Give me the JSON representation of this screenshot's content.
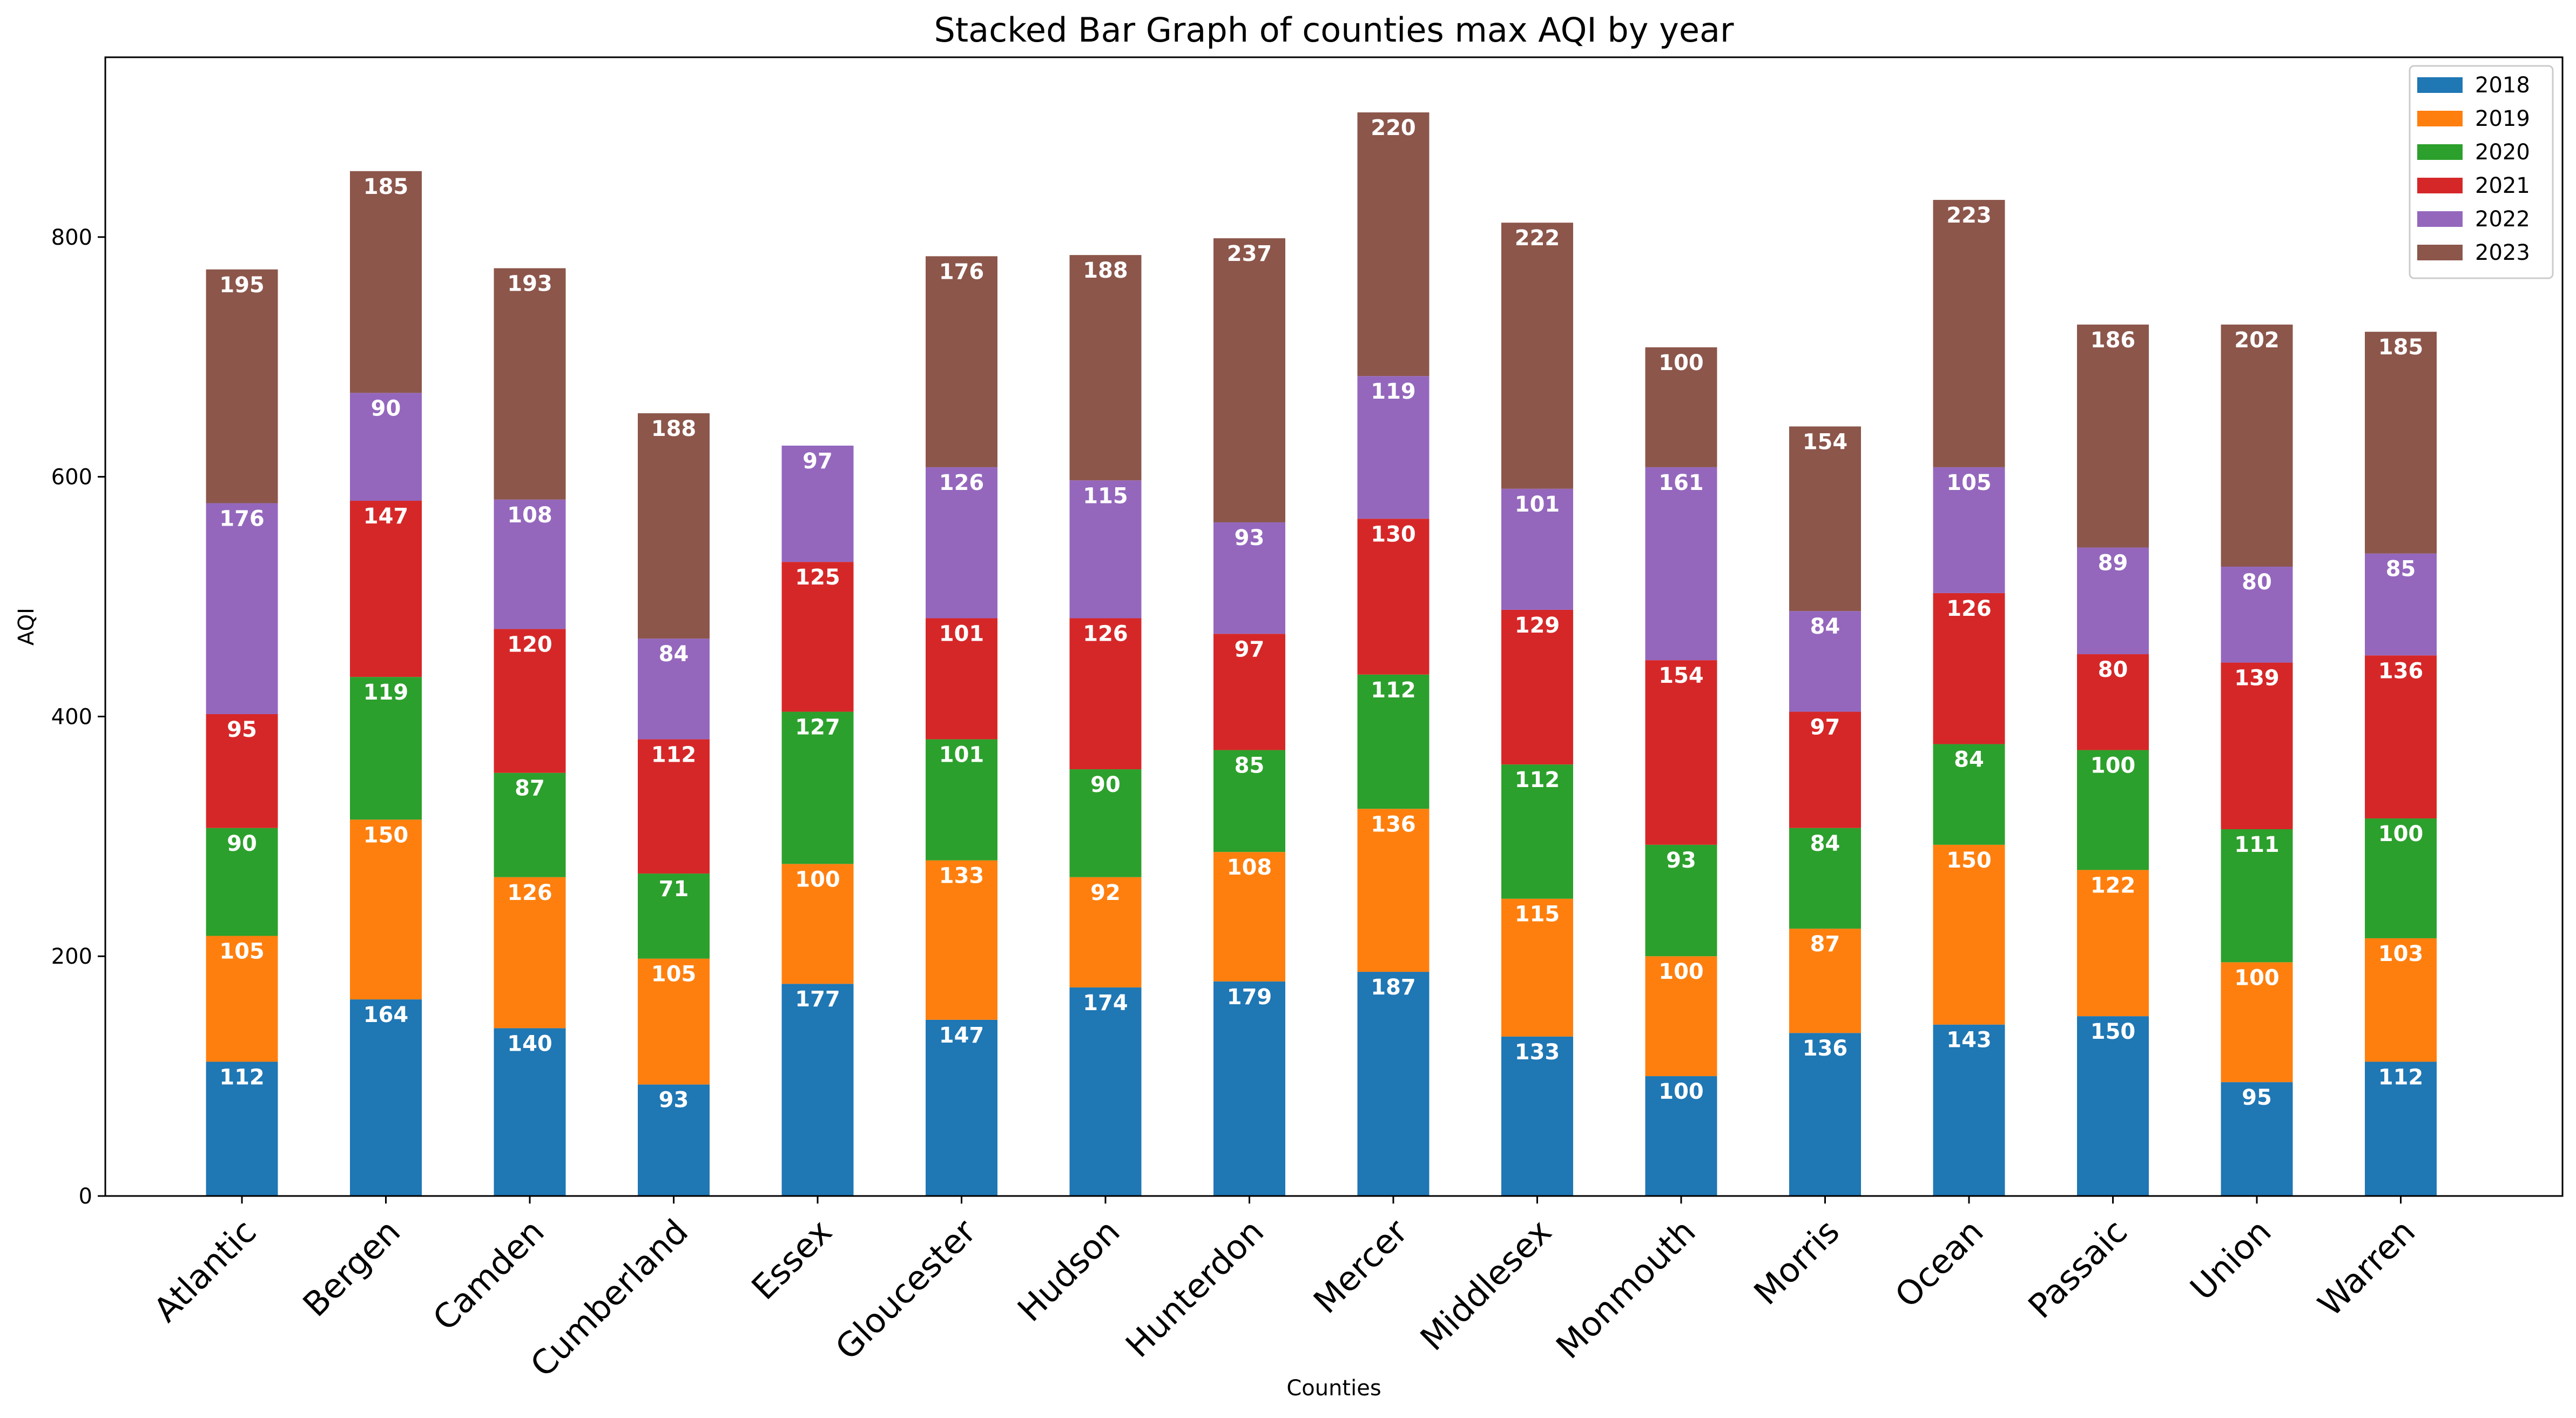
{
  "chart_data": {
    "type": "bar",
    "stacked": true,
    "title": "Stacked Bar Graph of counties max AQI by year",
    "xlabel": "Counties",
    "ylabel": "AQI",
    "ylim": [
      0,
      950
    ],
    "yticks": [
      0,
      200,
      400,
      600,
      800
    ],
    "grid": false,
    "legend_position": "top-right",
    "categories": [
      "Atlantic",
      "Bergen",
      "Camden",
      "Cumberland",
      "Essex",
      "Gloucester",
      "Hudson",
      "Hunterdon",
      "Mercer",
      "Middlesex",
      "Monmouth",
      "Morris",
      "Ocean",
      "Passaic",
      "Union",
      "Warren"
    ],
    "series": [
      {
        "name": "2018",
        "color": "#1f77b4",
        "values": [
          112,
          164,
          140,
          93,
          177,
          147,
          174,
          179,
          187,
          133,
          100,
          136,
          143,
          150,
          95,
          112
        ]
      },
      {
        "name": "2019",
        "color": "#ff7f0e",
        "values": [
          105,
          150,
          126,
          105,
          100,
          133,
          92,
          108,
          136,
          115,
          100,
          87,
          150,
          122,
          100,
          103
        ]
      },
      {
        "name": "2020",
        "color": "#2ca02c",
        "values": [
          90,
          119,
          87,
          71,
          127,
          101,
          90,
          85,
          112,
          112,
          93,
          84,
          84,
          100,
          111,
          100
        ]
      },
      {
        "name": "2021",
        "color": "#d62728",
        "values": [
          95,
          147,
          120,
          112,
          125,
          101,
          126,
          97,
          130,
          129,
          154,
          97,
          126,
          80,
          139,
          136
        ]
      },
      {
        "name": "2022",
        "color": "#9467bd",
        "values": [
          176,
          90,
          108,
          84,
          97,
          126,
          115,
          93,
          119,
          101,
          161,
          84,
          105,
          89,
          80,
          85
        ]
      },
      {
        "name": "2023",
        "color": "#8c564b",
        "values": [
          195,
          185,
          193,
          188,
          null,
          176,
          188,
          237,
          220,
          222,
          100,
          154,
          223,
          186,
          202,
          185
        ]
      }
    ]
  }
}
